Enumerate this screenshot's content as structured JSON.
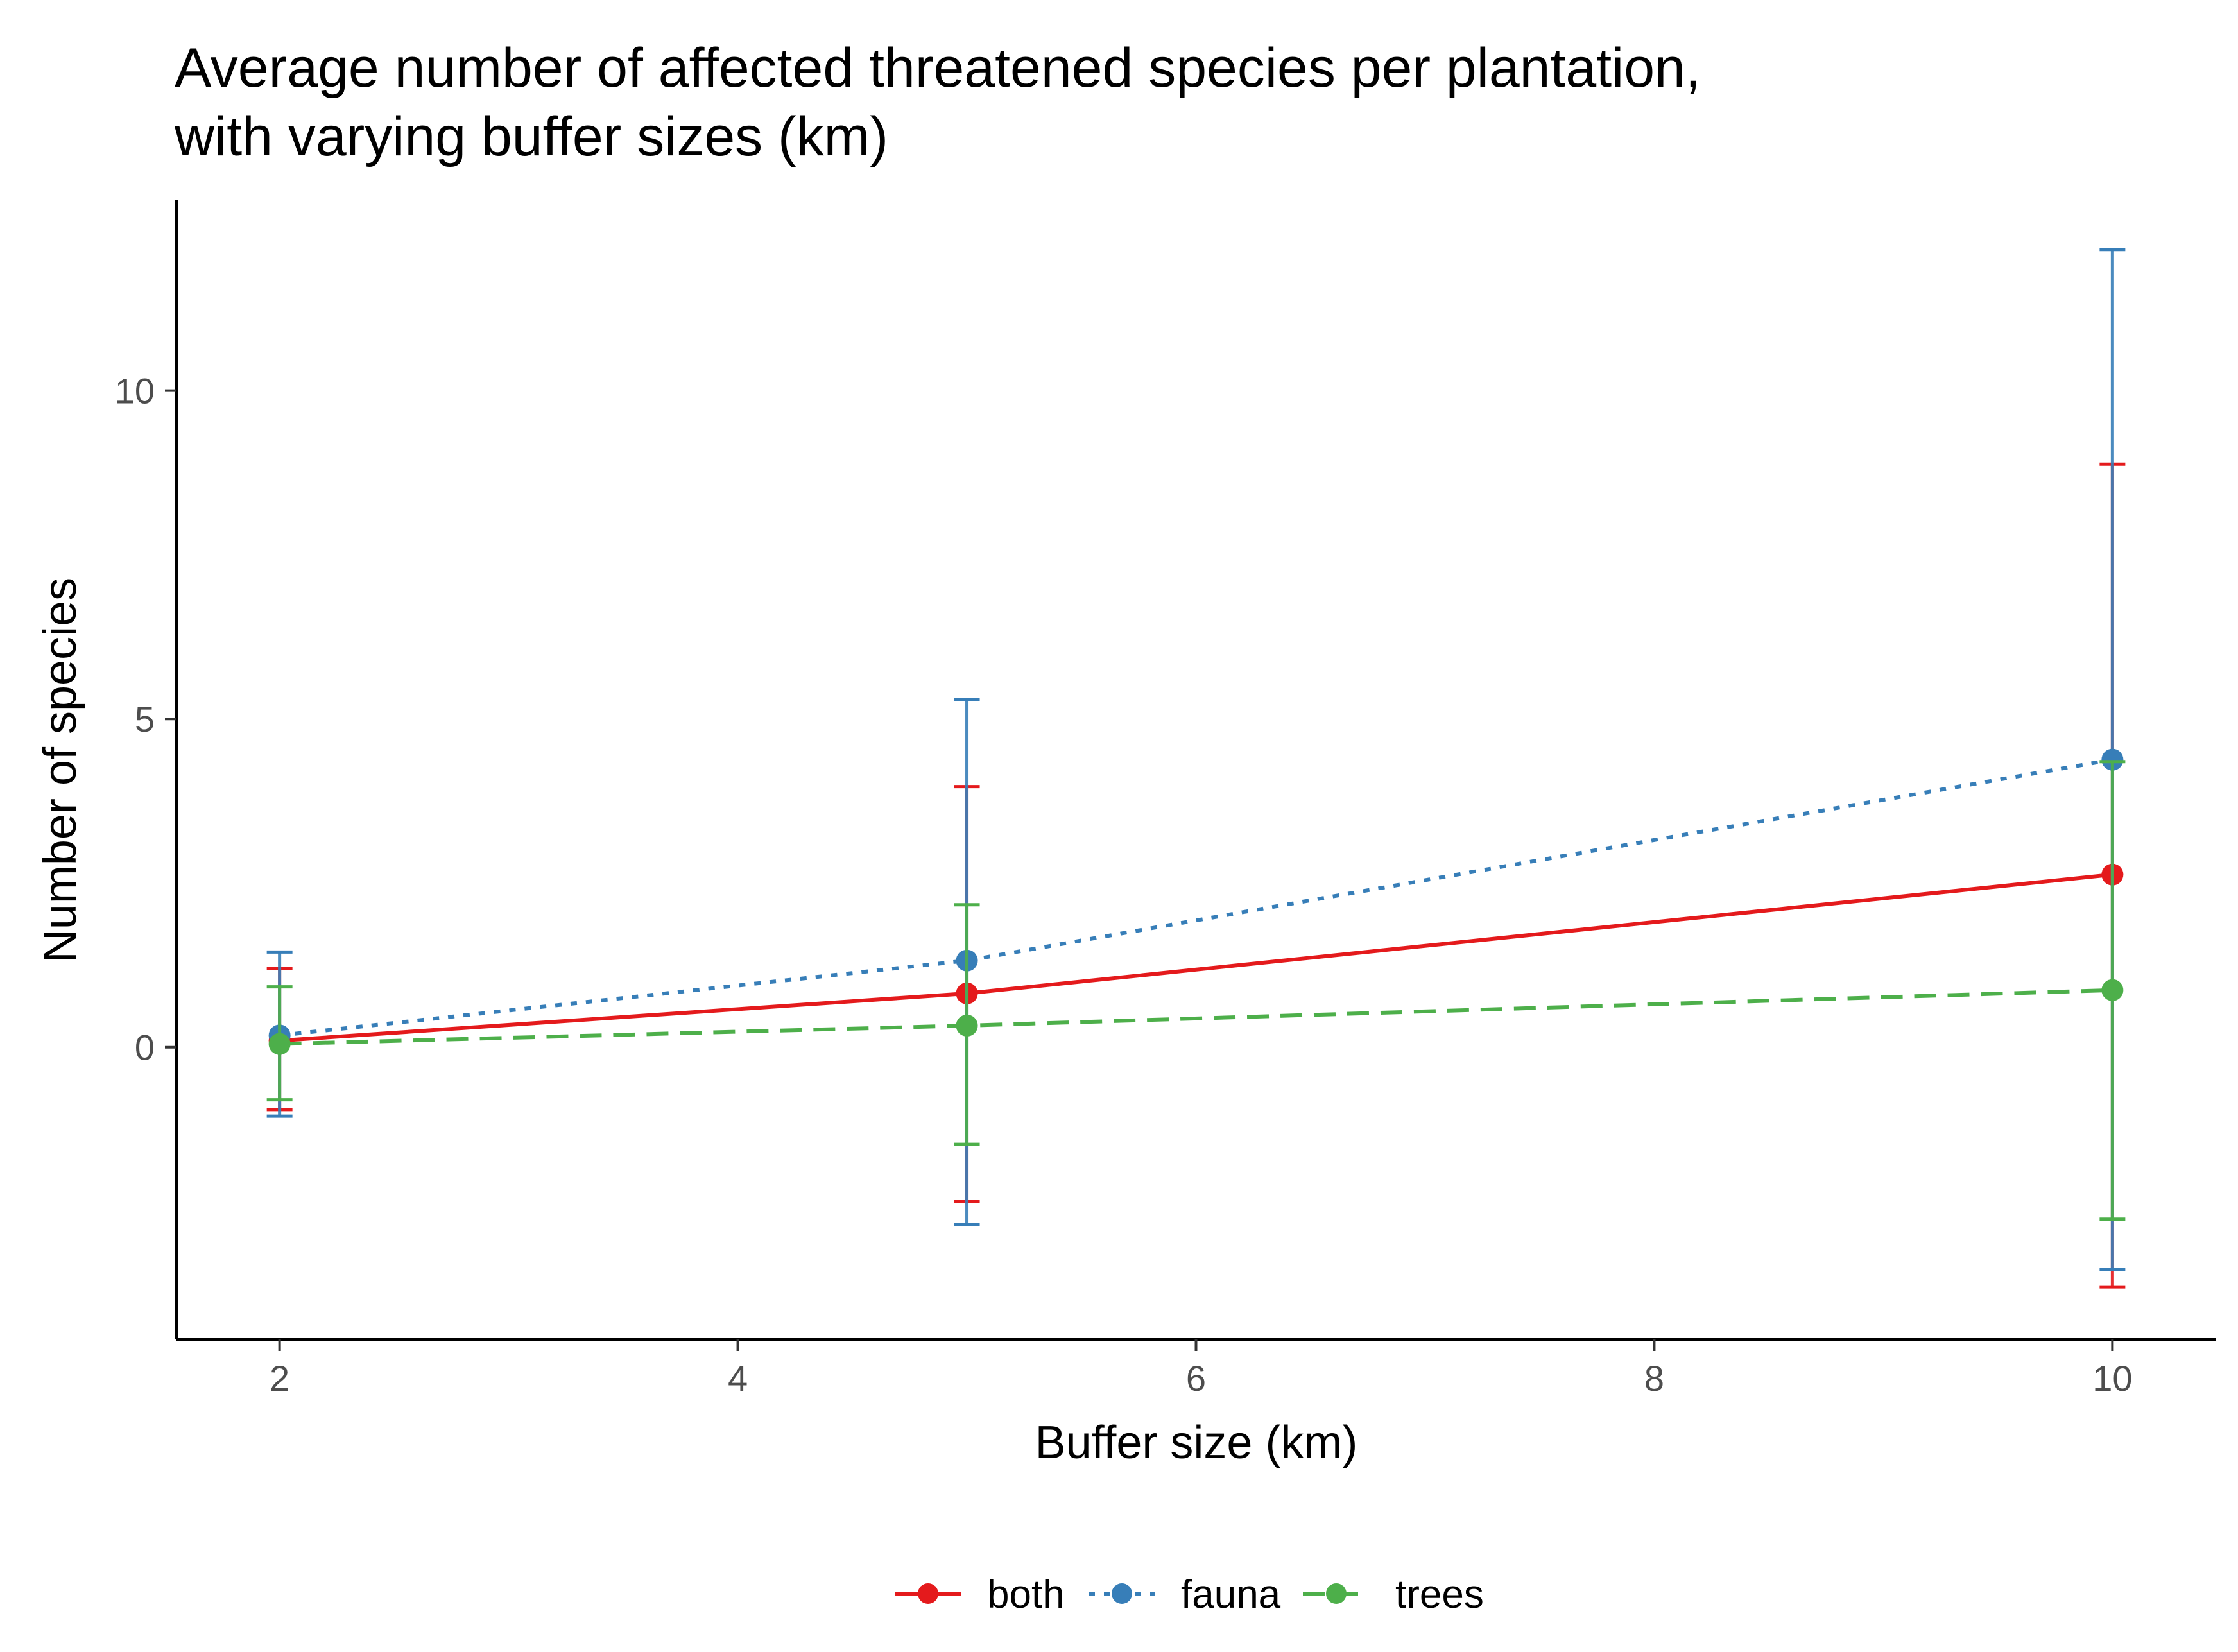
{
  "chart_data": {
    "type": "line",
    "title_lines": [
      "Average number of affected threatened species per plantation,",
      "with varying buffer sizes (km)"
    ],
    "xlabel": "Buffer size (km)",
    "ylabel": "Number of species",
    "xlim": [
      1.55,
      10.45
    ],
    "ylim": [
      -4.45,
      12.9
    ],
    "x_ticks": [
      2,
      4,
      6,
      8,
      10
    ],
    "x_tick_labels": [
      "2",
      "4",
      "6",
      "8",
      "10"
    ],
    "y_ticks": [
      0,
      5,
      10
    ],
    "y_tick_labels": [
      "0",
      "5",
      "10"
    ],
    "grid": false,
    "legend_position": "bottom",
    "series": [
      {
        "name": "both",
        "color": "#E41A1C",
        "line_style": "solid",
        "x": [
          2,
          5,
          10
        ],
        "y": [
          0.1,
          0.82,
          2.63
        ],
        "err_low": [
          -0.95,
          -2.35,
          -3.65
        ],
        "err_high": [
          1.2,
          3.97,
          8.88
        ]
      },
      {
        "name": "fauna",
        "color": "#377EB8",
        "line_style": "dotted",
        "x": [
          2,
          5,
          10
        ],
        "y": [
          0.18,
          1.32,
          4.38
        ],
        "err_low": [
          -1.05,
          -2.7,
          -3.38
        ],
        "err_high": [
          1.45,
          5.3,
          12.15
        ]
      },
      {
        "name": "trees",
        "color": "#4DAF4A",
        "line_style": "dashed",
        "x": [
          2,
          5,
          10
        ],
        "y": [
          0.05,
          0.33,
          0.87
        ],
        "err_low": [
          -0.8,
          -1.48,
          -2.62
        ],
        "err_high": [
          0.92,
          2.17,
          4.35
        ]
      }
    ]
  }
}
